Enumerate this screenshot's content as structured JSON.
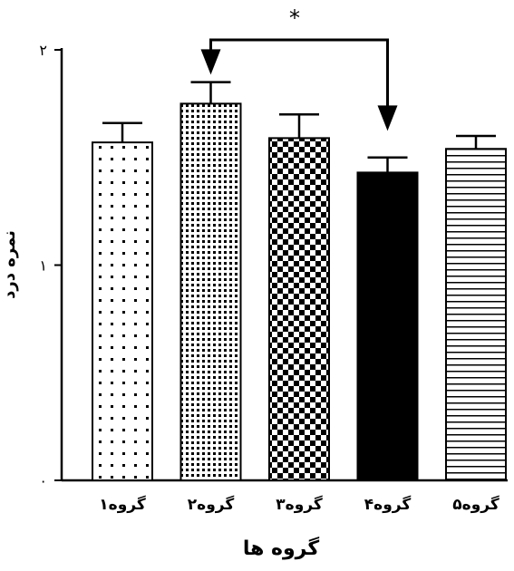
{
  "chart_data": {
    "type": "bar",
    "xlabel": "گروه ها",
    "ylabel": "نمره درد",
    "ylim": [
      0,
      2
    ],
    "yticks": [
      "۰",
      "۱",
      "۲"
    ],
    "categories": [
      "گروه۱",
      "گروه۲",
      "گروه۳",
      "گروه۴",
      "گروه۵"
    ],
    "values": [
      1.57,
      1.75,
      1.59,
      1.43,
      1.54
    ],
    "errors": [
      0.09,
      0.1,
      0.11,
      0.07,
      0.06
    ],
    "patterns": [
      "sparse-dots",
      "dense-dots",
      "checker",
      "solid",
      "horizontal-lines"
    ],
    "significance": {
      "from": 1,
      "to": 3,
      "label": "*"
    },
    "grid": false,
    "colors": {
      "bar_stroke": "#000000",
      "solid_fill": "#000000",
      "background": "#ffffff"
    }
  }
}
